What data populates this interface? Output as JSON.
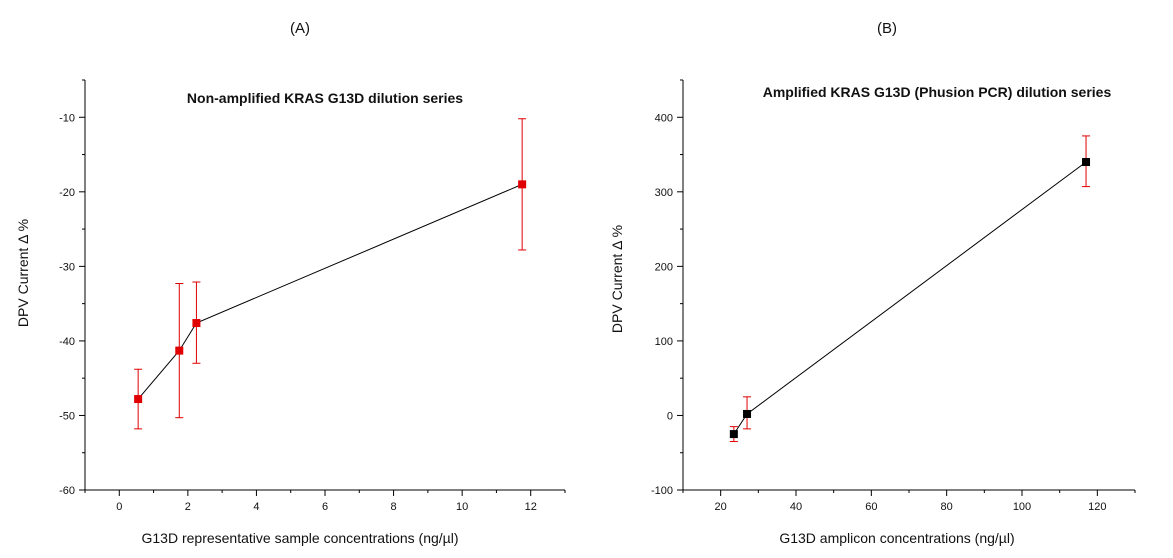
{
  "chart_data": [
    {
      "type": "line",
      "panel_label": "(A)",
      "title": "Non-amplified KRAS G13D dilution series",
      "xlabel": "G13D representative sample concentrations (ng/µl)",
      "ylabel": "DPV Current Δ %",
      "xlim": [
        -1,
        13
      ],
      "ylim": [
        -60,
        -5
      ],
      "xticks": [
        0,
        2,
        4,
        6,
        8,
        10,
        12
      ],
      "yticks": [
        -60,
        -50,
        -40,
        -30,
        -20,
        -10
      ],
      "grid": false,
      "legend": "none",
      "marker_color": "#e00000",
      "error_color": "#e00000",
      "line_color": "#000000",
      "series": [
        {
          "x": [
            0.55,
            1.75,
            2.25,
            11.75
          ],
          "y": [
            -47.8,
            -41.3,
            -37.6,
            -19.0
          ],
          "err_low": [
            -51.8,
            -50.3,
            -43.0,
            -27.8
          ],
          "err_high": [
            -43.8,
            -32.3,
            -32.1,
            -10.2
          ]
        }
      ]
    },
    {
      "type": "line",
      "panel_label": "(B)",
      "title": "Amplified KRAS G13D (Phusion PCR) dilution series",
      "xlabel": "G13D amplicon concentrations (ng/µl)",
      "ylabel": "DPV Current Δ %",
      "xlim": [
        10,
        130
      ],
      "ylim": [
        -100,
        450
      ],
      "xticks": [
        20,
        40,
        60,
        80,
        100,
        120
      ],
      "yticks": [
        -100,
        0,
        100,
        200,
        300,
        400
      ],
      "grid": false,
      "legend": "none",
      "marker_color": "#000000",
      "error_color": "#e00000",
      "line_color": "#000000",
      "series": [
        {
          "x": [
            23.5,
            27,
            117
          ],
          "y": [
            -25,
            2,
            340
          ],
          "err_low": [
            -35,
            -18,
            307
          ],
          "err_high": [
            -15,
            25,
            375
          ]
        }
      ]
    }
  ]
}
